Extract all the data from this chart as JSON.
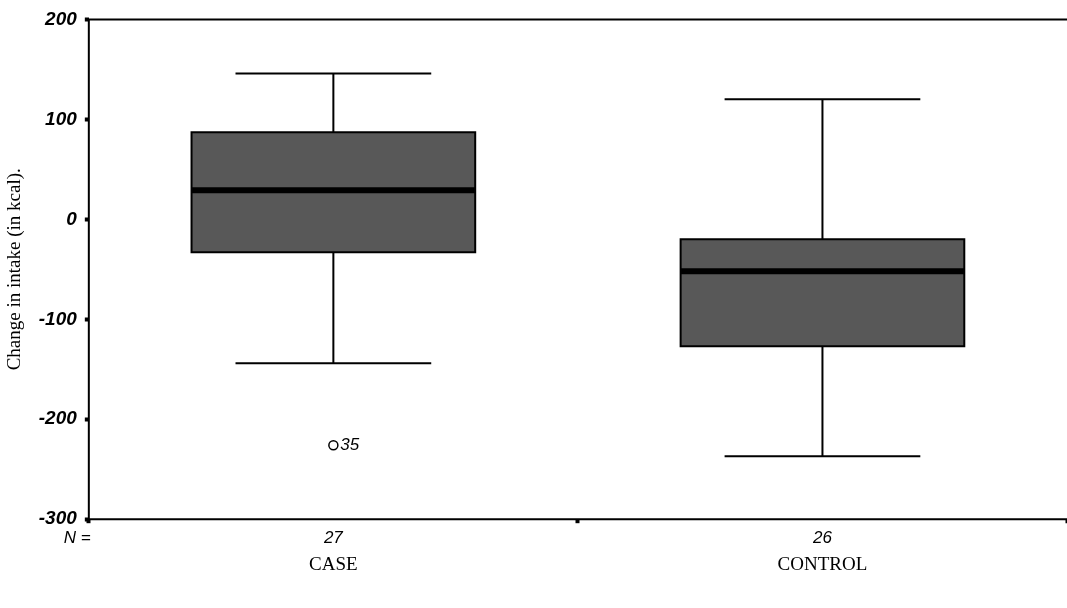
{
  "chart_data": {
    "type": "box",
    "ylabel": "Change in intake (in kcal).",
    "categories": [
      "CASE",
      "CONTROL"
    ],
    "boxes": [
      {
        "low": -144,
        "q1": -33,
        "median": 29,
        "q3": 87,
        "high": 146,
        "outliers": [
          -226
        ]
      },
      {
        "low": -237,
        "q1": -127,
        "median": -52,
        "q3": -20,
        "high": 120
      }
    ],
    "color": "#585858",
    "ylim": [
      -300,
      200
    ],
    "yticks": [
      -300,
      -200,
      -100,
      0,
      100,
      200
    ],
    "grid": false,
    "legend": false,
    "annotations": [
      "N =",
      "27",
      "26",
      "35"
    ]
  }
}
